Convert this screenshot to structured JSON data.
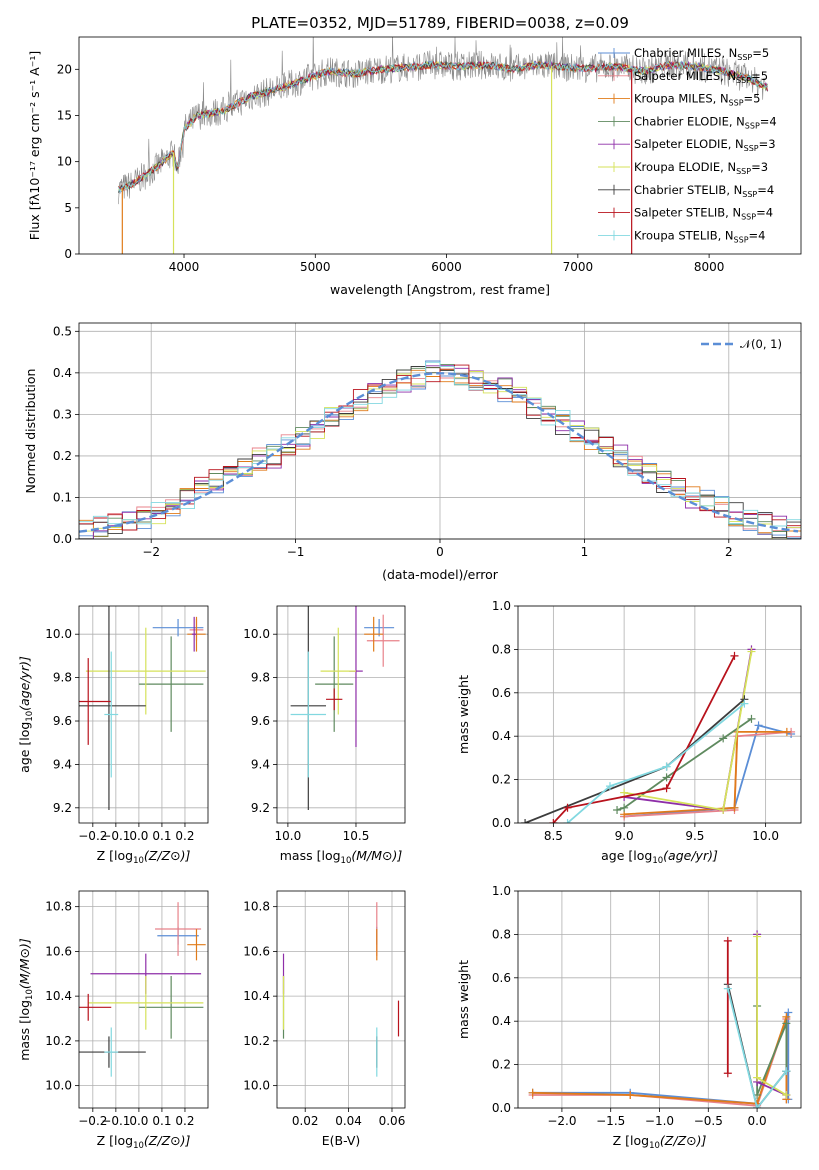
{
  "colors": {
    "chabrier_miles": "#5b8ed6",
    "salpeter_miles": "#e8828a",
    "kroupa_miles": "#e07b1a",
    "chabrier_elodie": "#5f8a5f",
    "salpeter_elodie": "#8e2ea8",
    "kroupa_elodie": "#d6e25a",
    "chabrier_stelib": "#3c3c3c",
    "salpeter_stelib": "#b8121c",
    "kroupa_stelib": "#82d8e0",
    "normal_curve": "#5b8ed6"
  },
  "chart_data": [
    {
      "id": "spectrum",
      "type": "line",
      "title": "PLATE=0352, MJD=51789, FIBERID=0038, z=0.09",
      "xlabel": "wavelength [Angstrom, rest frame]",
      "ylabel": "Flux [fλ10⁻¹⁷ erg cm⁻² s⁻¹ A⁻¹]",
      "xlim": [
        3200,
        8700
      ],
      "ylim": [
        0,
        23.5
      ],
      "xticks": [
        4000,
        5000,
        6000,
        7000,
        8000
      ],
      "yticks": [
        0,
        5,
        10,
        15,
        20
      ],
      "legend_position": "right",
      "legend": [
        "Chabrier MILES, N_SSP=5",
        "Salpeter MILES, N_SSP=5",
        "Kroupa MILES, N_SSP=5",
        "Chabrier ELODIE, N_SSP=4",
        "Salpeter ELODIE, N_SSP=3",
        "Kroupa ELODIE, N_SSP=3",
        "Chabrier STELIB, N_SSP=4",
        "Salpeter STELIB, N_SSP=4",
        "Kroupa STELIB, N_SSP=4"
      ],
      "continuum": {
        "x": [
          3500,
          3600,
          3800,
          3920,
          3950,
          4000,
          4100,
          4300,
          4500,
          4700,
          4900,
          5100,
          5300,
          5500,
          5700,
          5900,
          6100,
          6300,
          6500,
          6700,
          6900,
          7100,
          7300,
          7500,
          7700,
          7900,
          8100,
          8300,
          8450
        ],
        "y": [
          7.0,
          7.5,
          9.5,
          11.0,
          9.0,
          13.5,
          15.0,
          15.5,
          17.0,
          17.8,
          18.8,
          19.8,
          19.5,
          20.0,
          20.2,
          20.5,
          20.3,
          20.5,
          20.0,
          20.5,
          20.2,
          20.1,
          20.3,
          19.8,
          20.5,
          20.3,
          19.8,
          19.0,
          18.0
        ]
      }
    },
    {
      "id": "residuals",
      "type": "histogram",
      "xlabel": "(data-model)/error",
      "ylabel": "Normed distribution",
      "xlim": [
        -2.5,
        2.5
      ],
      "ylim": [
        0,
        0.52
      ],
      "xticks": [
        -2,
        -1,
        0,
        1,
        2
      ],
      "yticks": [
        0.0,
        0.1,
        0.2,
        0.3,
        0.4,
        0.5
      ],
      "bin_edges": [
        -2.5,
        -2.4,
        -2.3,
        -2.2,
        -2.1,
        -2.0,
        -1.9,
        -1.8,
        -1.7,
        -1.6,
        -1.5,
        -1.4,
        -1.3,
        -1.2,
        -1.1,
        -1.0,
        -0.9,
        -0.8,
        -0.7,
        -0.6,
        -0.5,
        -0.4,
        -0.3,
        -0.2,
        -0.1,
        0.0,
        0.1,
        0.2,
        0.3,
        0.4,
        0.5,
        0.6,
        0.7,
        0.8,
        0.9,
        1.0,
        1.1,
        1.2,
        1.3,
        1.4,
        1.5,
        1.6,
        1.7,
        1.8,
        1.9,
        2.0,
        2.1,
        2.2,
        2.3,
        2.4,
        2.5
      ],
      "reference_value": [
        0.02,
        0.03,
        0.04,
        0.05,
        0.05,
        0.06,
        0.08,
        0.1,
        0.12,
        0.14,
        0.15,
        0.17,
        0.19,
        0.2,
        0.23,
        0.24,
        0.27,
        0.29,
        0.31,
        0.33,
        0.35,
        0.37,
        0.38,
        0.39,
        0.4,
        0.4,
        0.39,
        0.38,
        0.37,
        0.36,
        0.35,
        0.32,
        0.3,
        0.28,
        0.26,
        0.24,
        0.22,
        0.2,
        0.17,
        0.16,
        0.14,
        0.12,
        0.1,
        0.09,
        0.08,
        0.06,
        0.05,
        0.04,
        0.03,
        0.03
      ],
      "normal_curve_label": "𝒩(0, 1)",
      "legend_position": "top-right"
    },
    {
      "id": "age_vs_Z",
      "type": "errorbar",
      "xlabel": "Z [log10(Z/Z⊙)]",
      "ylabel": "age  [log10(age/yr)]",
      "xlim": [
        -0.26,
        0.3
      ],
      "ylim": [
        9.13,
        10.13
      ],
      "xticks": [
        -0.2,
        -0.1,
        0.0,
        0.1,
        0.2
      ],
      "yticks": [
        9.2,
        9.4,
        9.6,
        9.8,
        10.0
      ],
      "points": [
        {
          "model": "chabrier_miles",
          "x": 0.17,
          "y": 10.03,
          "xerr": 0.11,
          "yerr": 0.04
        },
        {
          "model": "salpeter_miles",
          "x": 0.25,
          "y": 10.02,
          "xerr": 0.03,
          "yerr": 0.05
        },
        {
          "model": "kroupa_miles",
          "x": 0.25,
          "y": 10.0,
          "xerr": 0.04,
          "yerr": 0.08
        },
        {
          "model": "chabrier_elodie",
          "x": 0.14,
          "y": 9.77,
          "xerr": 0.14,
          "yerr": 0.22
        },
        {
          "model": "salpeter_elodie",
          "x": 0.24,
          "y": 10.0,
          "xerr": 0.01,
          "yerr": 0.08
        },
        {
          "model": "kroupa_elodie",
          "x": 0.03,
          "y": 9.83,
          "xerr": 0.26,
          "yerr": 0.2
        },
        {
          "model": "chabrier_stelib",
          "x": -0.13,
          "y": 9.67,
          "xerr": 0.16,
          "yerr": 0.48
        },
        {
          "model": "salpeter_stelib",
          "x": -0.22,
          "y": 9.69,
          "xerr": 0.1,
          "yerr": 0.2
        },
        {
          "model": "kroupa_stelib",
          "x": -0.12,
          "y": 9.63,
          "xerr": 0.03,
          "yerr": 0.29
        }
      ]
    },
    {
      "id": "age_vs_mass",
      "type": "errorbar",
      "xlabel": "mass [log10(M/M⊙)]",
      "xlim": [
        9.92,
        10.86
      ],
      "ylim": [
        9.13,
        10.13
      ],
      "xticks": [
        10.0,
        10.5
      ],
      "yticks": [
        9.2,
        9.4,
        9.6,
        9.8,
        10.0
      ],
      "points": [
        {
          "model": "chabrier_miles",
          "x": 10.67,
          "y": 10.03,
          "xerr": 0.11,
          "yerr": 0.04
        },
        {
          "model": "salpeter_miles",
          "x": 10.7,
          "y": 9.97,
          "xerr": 0.12,
          "yerr": 0.12
        },
        {
          "model": "kroupa_miles",
          "x": 10.63,
          "y": 10.0,
          "xerr": 0.07,
          "yerr": 0.08
        },
        {
          "model": "chabrier_elodie",
          "x": 10.34,
          "y": 9.77,
          "xerr": 0.14,
          "yerr": 0.22
        },
        {
          "model": "salpeter_elodie",
          "x": 10.5,
          "y": 9.83,
          "xerr": 0.05,
          "yerr": 0.35
        },
        {
          "model": "kroupa_elodie",
          "x": 10.37,
          "y": 9.83,
          "xerr": 0.13,
          "yerr": 0.2
        },
        {
          "model": "chabrier_stelib",
          "x": 10.15,
          "y": 9.67,
          "xerr": 0.13,
          "yerr": 0.48
        },
        {
          "model": "salpeter_stelib",
          "x": 10.34,
          "y": 9.7,
          "xerr": 0.06,
          "yerr": 0.05
        },
        {
          "model": "kroupa_stelib",
          "x": 10.15,
          "y": 9.63,
          "xerr": 0.13,
          "yerr": 0.29
        }
      ]
    },
    {
      "id": "massweight_vs_age",
      "type": "line",
      "xlabel": "age  [log10(age/yr)]",
      "ylabel": "mass weight",
      "xlim": [
        8.25,
        10.25
      ],
      "ylim": [
        0,
        1
      ],
      "xticks": [
        8.5,
        9.0,
        9.5,
        10.0
      ],
      "yticks": [
        0.0,
        0.2,
        0.4,
        0.6,
        0.8,
        1.0
      ],
      "series": [
        {
          "model": "chabrier_miles",
          "x": [
            9.0,
            9.78,
            9.95,
            10.18
          ],
          "y": [
            0.03,
            0.07,
            0.45,
            0.41
          ]
        },
        {
          "model": "salpeter_miles",
          "x": [
            9.0,
            9.78,
            9.8,
            10.18
          ],
          "y": [
            0.03,
            0.06,
            0.4,
            0.42
          ]
        },
        {
          "model": "kroupa_miles",
          "x": [
            9.0,
            9.78,
            9.8,
            10.15
          ],
          "y": [
            0.04,
            0.07,
            0.42,
            0.42
          ]
        },
        {
          "model": "chabrier_elodie",
          "x": [
            8.95,
            9.0,
            9.3,
            9.7,
            9.9
          ],
          "y": [
            0.06,
            0.07,
            0.21,
            0.39,
            0.48
          ]
        },
        {
          "model": "salpeter_elodie",
          "x": [
            9.0,
            9.7,
            9.9
          ],
          "y": [
            0.12,
            0.06,
            0.8
          ]
        },
        {
          "model": "kroupa_elodie",
          "x": [
            9.0,
            9.7,
            9.9
          ],
          "y": [
            0.14,
            0.06,
            0.79
          ]
        },
        {
          "model": "chabrier_stelib",
          "x": [
            8.3,
            9.3,
            9.85
          ],
          "y": [
            0.0,
            0.26,
            0.57
          ]
        },
        {
          "model": "salpeter_stelib",
          "x": [
            8.5,
            8.6,
            9.3,
            9.78
          ],
          "y": [
            0.0,
            0.07,
            0.16,
            0.77
          ]
        },
        {
          "model": "kroupa_stelib",
          "x": [
            8.6,
            8.9,
            9.3,
            9.85
          ],
          "y": [
            0.0,
            0.17,
            0.26,
            0.55
          ]
        }
      ]
    },
    {
      "id": "mass_vs_Z",
      "type": "errorbar",
      "xlabel": "Z [log10(Z/Z⊙)]",
      "ylabel": "mass [log10(M/M⊙)]",
      "xlim": [
        -0.26,
        0.3
      ],
      "ylim": [
        9.9,
        10.87
      ],
      "xticks": [
        -0.2,
        -0.1,
        0.0,
        0.1,
        0.2
      ],
      "yticks": [
        10.0,
        10.2,
        10.4,
        10.6,
        10.8
      ],
      "points": [
        {
          "model": "chabrier_miles",
          "x": 0.17,
          "y": 10.67,
          "xerr": 0.09,
          "yerr": 0.04
        },
        {
          "model": "salpeter_miles",
          "x": 0.17,
          "y": 10.7,
          "xerr": 0.1,
          "yerr": 0.12
        },
        {
          "model": "kroupa_miles",
          "x": 0.25,
          "y": 10.63,
          "xerr": 0.04,
          "yerr": 0.07
        },
        {
          "model": "chabrier_elodie",
          "x": 0.14,
          "y": 10.35,
          "xerr": 0.14,
          "yerr": 0.14
        },
        {
          "model": "salpeter_elodie",
          "x": 0.03,
          "y": 10.5,
          "xerr": 0.24,
          "yerr": 0.09
        },
        {
          "model": "kroupa_elodie",
          "x": 0.03,
          "y": 10.37,
          "xerr": 0.25,
          "yerr": 0.12
        },
        {
          "model": "chabrier_stelib",
          "x": -0.13,
          "y": 10.15,
          "xerr": 0.16,
          "yerr": 0.07
        },
        {
          "model": "salpeter_stelib",
          "x": -0.22,
          "y": 10.35,
          "xerr": 0.1,
          "yerr": 0.06
        },
        {
          "model": "kroupa_stelib",
          "x": -0.12,
          "y": 10.15,
          "xerr": 0.03,
          "yerr": 0.11
        }
      ]
    },
    {
      "id": "mass_vs_ebv",
      "type": "errorbar",
      "xlabel": "E(B-V)",
      "xlim": [
        0.007,
        0.066
      ],
      "ylim": [
        9.9,
        10.87
      ],
      "xticks": [
        0.02,
        0.04,
        0.06
      ],
      "yticks": [
        10.0,
        10.2,
        10.4,
        10.6,
        10.8
      ],
      "points": [
        {
          "model": "chabrier_miles",
          "x": 0.053,
          "y": 10.67,
          "xerr": 0.0,
          "yerr": 0.04
        },
        {
          "model": "salpeter_miles",
          "x": 0.053,
          "y": 10.7,
          "xerr": 0.0,
          "yerr": 0.12
        },
        {
          "model": "kroupa_miles",
          "x": 0.053,
          "y": 10.63,
          "xerr": 0.0,
          "yerr": 0.07
        },
        {
          "model": "chabrier_elodie",
          "x": 0.01,
          "y": 10.35,
          "xerr": 0.0,
          "yerr": 0.14
        },
        {
          "model": "salpeter_elodie",
          "x": 0.01,
          "y": 10.5,
          "xerr": 0.0,
          "yerr": 0.09
        },
        {
          "model": "kroupa_elodie",
          "x": 0.01,
          "y": 10.37,
          "xerr": 0.0,
          "yerr": 0.12
        },
        {
          "model": "chabrier_stelib",
          "x": 0.053,
          "y": 10.15,
          "xerr": 0.0,
          "yerr": 0.07
        },
        {
          "model": "salpeter_stelib",
          "x": 0.063,
          "y": 10.3,
          "xerr": 0.0,
          "yerr": 0.08
        },
        {
          "model": "kroupa_stelib",
          "x": 0.053,
          "y": 10.15,
          "xerr": 0.0,
          "yerr": 0.11
        }
      ]
    },
    {
      "id": "massweight_vs_Z",
      "type": "line",
      "xlabel": "Z [log10(Z/Z⊙)]",
      "ylabel": "mass weight",
      "xlim": [
        -2.45,
        0.45
      ],
      "ylim": [
        0,
        1
      ],
      "xticks": [
        -2.0,
        -1.5,
        -1.0,
        -0.5,
        0.0
      ],
      "yticks": [
        0.0,
        0.2,
        0.4,
        0.6,
        0.8,
        1.0
      ],
      "series": [
        {
          "model": "chabrier_miles",
          "x": [
            -2.3,
            -1.3,
            0.0,
            0.32,
            0.32
          ],
          "y": [
            0.07,
            0.07,
            0.02,
            0.44,
            0.04
          ]
        },
        {
          "model": "salpeter_miles",
          "x": [
            -2.3,
            -1.3,
            0.0,
            0.3,
            0.3
          ],
          "y": [
            0.06,
            0.06,
            0.01,
            0.41,
            0.04
          ]
        },
        {
          "model": "kroupa_miles",
          "x": [
            -2.3,
            -1.3,
            0.0,
            0.3,
            0.3
          ],
          "y": [
            0.07,
            0.06,
            0.02,
            0.42,
            0.04
          ]
        },
        {
          "model": "chabrier_elodie",
          "x": [
            0.0,
            0.0,
            0.3,
            0.3
          ],
          "y": [
            0.47,
            0.06,
            0.39,
            0.17
          ]
        },
        {
          "model": "salpeter_elodie",
          "x": [
            0.0,
            0.0,
            0.3
          ],
          "y": [
            0.8,
            0.12,
            0.06
          ]
        },
        {
          "model": "kroupa_elodie",
          "x": [
            0.0,
            0.0,
            0.3
          ],
          "y": [
            0.79,
            0.14,
            0.06
          ]
        },
        {
          "model": "chabrier_stelib",
          "x": [
            -0.3,
            0.0,
            0.3
          ],
          "y": [
            0.57,
            0.0,
            0.17
          ]
        },
        {
          "model": "salpeter_stelib",
          "x": [
            -0.3,
            -0.3
          ],
          "y": [
            0.77,
            0.16
          ]
        },
        {
          "model": "kroupa_stelib",
          "x": [
            -0.3,
            0.0,
            0.3
          ],
          "y": [
            0.55,
            0.0,
            0.17
          ]
        }
      ]
    }
  ]
}
